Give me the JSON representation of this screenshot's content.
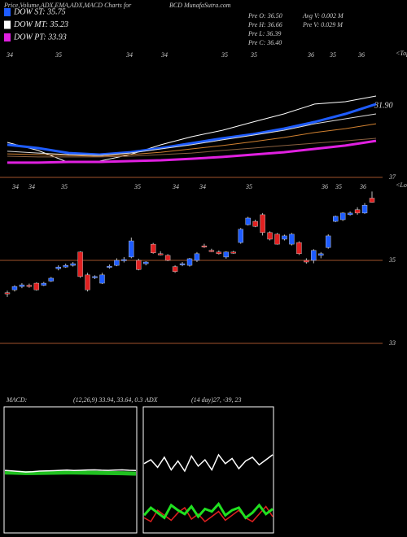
{
  "header": {
    "title": "Price,Volume,ADX,EMA,ADX,MACD Charts for",
    "site": "BCD MunafaSutra.com",
    "legend": [
      {
        "text": "DOW ST: 35.75",
        "color": "#1e5cff"
      },
      {
        "text": "DOW MT: 35.23",
        "color": "#ffffff"
      },
      {
        "text": "DOW PT: 33.93",
        "color": "#e020e0"
      }
    ],
    "stats": [
      "Pre O: 36.50",
      "Avg V: 0.002 M",
      "Pre H: 36.66",
      "Pre V: 0.029 M",
      "Pre L: 36.39",
      "Pre C: 36.40"
    ]
  },
  "chart_data": [
    {
      "type": "line",
      "ylim": [
        31.5,
        37.5
      ],
      "annotation": "31.90",
      "top_note": "<Tops",
      "top_labels": [
        "34",
        "35",
        "34",
        "34",
        "35",
        "35",
        "36",
        "35",
        "36"
      ],
      "series": [
        {
          "color": "#ffffff",
          "values": [
            32.74,
            32.33,
            31.71,
            31.79,
            32.12,
            32.62,
            33.03,
            33.36,
            33.78,
            34.19,
            34.69,
            34.81,
            35.1
          ]
        },
        {
          "color": "#1e5cff",
          "values": [
            32.62,
            32.45,
            32.2,
            32.12,
            32.24,
            32.45,
            32.7,
            32.95,
            33.16,
            33.44,
            33.78,
            34.19,
            34.69
          ]
        },
        {
          "color": "#dddddd",
          "values": [
            32.29,
            32.2,
            32.12,
            32.08,
            32.2,
            32.41,
            32.62,
            32.87,
            33.11,
            33.36,
            33.69,
            33.94,
            34.19
          ]
        },
        {
          "color": "#d08030",
          "values": [
            32.16,
            32.12,
            32.08,
            32.03,
            32.12,
            32.24,
            32.41,
            32.58,
            32.78,
            32.99,
            33.24,
            33.44,
            33.69
          ]
        },
        {
          "color": "#8a6040",
          "values": [
            32.04,
            32.0,
            32.0,
            32.0,
            32.04,
            32.12,
            32.2,
            32.33,
            32.45,
            32.58,
            32.7,
            32.82,
            32.95
          ]
        },
        {
          "color": "#e020e0",
          "values": [
            31.71,
            31.71,
            31.75,
            31.75,
            31.79,
            31.83,
            31.91,
            32.0,
            32.12,
            32.24,
            32.41,
            32.58,
            32.82
          ]
        }
      ]
    },
    {
      "type": "candlestick",
      "ylim": [
        33,
        37
      ],
      "yticks": [
        37,
        35,
        33
      ],
      "grid_color": "#a0522d",
      "up_color": "#1e5cff",
      "down_color": "#e02020",
      "top_note": "<Lows",
      "top_labels": [
        "34",
        "34",
        "35",
        "35",
        "34",
        "34",
        "35",
        "36",
        "35",
        "36"
      ],
      "open": [
        34.22,
        34.29,
        34.37,
        34.4,
        34.45,
        34.4,
        34.5,
        34.8,
        34.84,
        34.88,
        35.2,
        34.65,
        34.58,
        34.45,
        34.84,
        34.88,
        35.0,
        35.08,
        35.0,
        34.92,
        35.39,
        35.16,
        35.12,
        34.85,
        34.9,
        34.88,
        35.0,
        35.35,
        35.24,
        35.2,
        35.08,
        35.2,
        35.43,
        35.86,
        35.94,
        36.1,
        35.67,
        35.63,
        35.51,
        35.39,
        35.43,
        35.0,
        35.0,
        35.12,
        35.31,
        35.94,
        35.98,
        36.1,
        36.22,
        36.14,
        36.5
      ],
      "high": [
        34.27,
        34.4,
        34.45,
        34.44,
        34.47,
        34.48,
        34.6,
        34.88,
        34.92,
        34.96,
        35.22,
        34.7,
        34.64,
        34.7,
        34.9,
        35.05,
        35.08,
        35.55,
        35.04,
        34.98,
        35.42,
        35.22,
        35.15,
        34.88,
        34.96,
        35.06,
        35.2,
        35.4,
        35.28,
        35.24,
        35.22,
        35.23,
        35.78,
        36.05,
        35.98,
        36.14,
        35.7,
        35.66,
        35.62,
        35.66,
        35.46,
        35.05,
        35.27,
        35.2,
        35.63,
        36.08,
        36.16,
        36.18,
        36.28,
        36.38,
        36.66
      ],
      "low": [
        34.12,
        34.25,
        34.33,
        34.34,
        34.27,
        34.38,
        34.48,
        34.76,
        34.82,
        34.85,
        34.58,
        34.25,
        34.55,
        34.43,
        34.8,
        34.86,
        34.95,
        35.05,
        34.76,
        34.88,
        35.16,
        35.12,
        34.98,
        34.7,
        34.86,
        34.85,
        34.96,
        35.3,
        35.2,
        35.14,
        35.04,
        35.16,
        35.4,
        35.84,
        35.8,
        35.6,
        35.48,
        35.38,
        35.48,
        35.36,
        35.13,
        34.92,
        34.93,
        35.05,
        35.28,
        35.92,
        35.95,
        36.08,
        36.1,
        36.12,
        36.39
      ],
      "close": [
        34.2,
        34.37,
        34.41,
        34.37,
        34.29,
        34.45,
        34.57,
        34.84,
        34.88,
        34.92,
        34.61,
        34.29,
        34.61,
        34.65,
        34.86,
        35.0,
        35.02,
        35.47,
        34.78,
        34.96,
        35.18,
        35.14,
        35.0,
        34.73,
        34.92,
        35.04,
        35.16,
        35.33,
        35.22,
        35.16,
        35.2,
        35.19,
        35.75,
        36.02,
        35.82,
        35.67,
        35.51,
        35.39,
        35.59,
        35.63,
        35.16,
        34.96,
        35.24,
        35.16,
        35.59,
        36.06,
        36.14,
        36.14,
        36.14,
        36.33,
        36.4
      ]
    },
    {
      "type": "macd",
      "title": "MACD:",
      "subtitle": "(12,26,9) 33.94, 33.64, 0.3",
      "ylim": [
        28,
        40
      ],
      "series": [
        {
          "color": "#20c020",
          "values": [
            33.75,
            33.74,
            33.72,
            33.7,
            33.7,
            33.71,
            33.72,
            33.73,
            33.74,
            33.75,
            33.75,
            33.74,
            33.73,
            33.72,
            33.71,
            33.7,
            33.69,
            33.68,
            33.66,
            33.64
          ]
        },
        {
          "color": "#ffffff",
          "values": [
            33.95,
            33.9,
            33.85,
            33.8,
            33.82,
            33.88,
            33.9,
            33.92,
            33.95,
            33.98,
            33.94,
            33.96,
            33.99,
            34.0,
            33.97,
            33.95,
            33.98,
            34.0,
            33.96,
            33.94
          ]
        }
      ]
    },
    {
      "type": "adx",
      "title": "ADX",
      "subtitle": "(14 day)27, -39, 23",
      "ylim": [
        0,
        100
      ],
      "series": [
        {
          "color": "#ffffff",
          "values": [
            55,
            58,
            52,
            60,
            50,
            57,
            49,
            61,
            53,
            58,
            50,
            62,
            55,
            59,
            51,
            57,
            60,
            54,
            58,
            62
          ]
        },
        {
          "color": "#e02020",
          "values": [
            12,
            9,
            18,
            14,
            10,
            16,
            20,
            11,
            15,
            9,
            13,
            17,
            10,
            14,
            18,
            12,
            9,
            15,
            21,
            13
          ]
        },
        {
          "color": "#20e020",
          "values": [
            14,
            20,
            16,
            12,
            22,
            18,
            15,
            21,
            13,
            19,
            17,
            23,
            14,
            18,
            20,
            12,
            16,
            22,
            15,
            19
          ]
        }
      ]
    }
  ]
}
